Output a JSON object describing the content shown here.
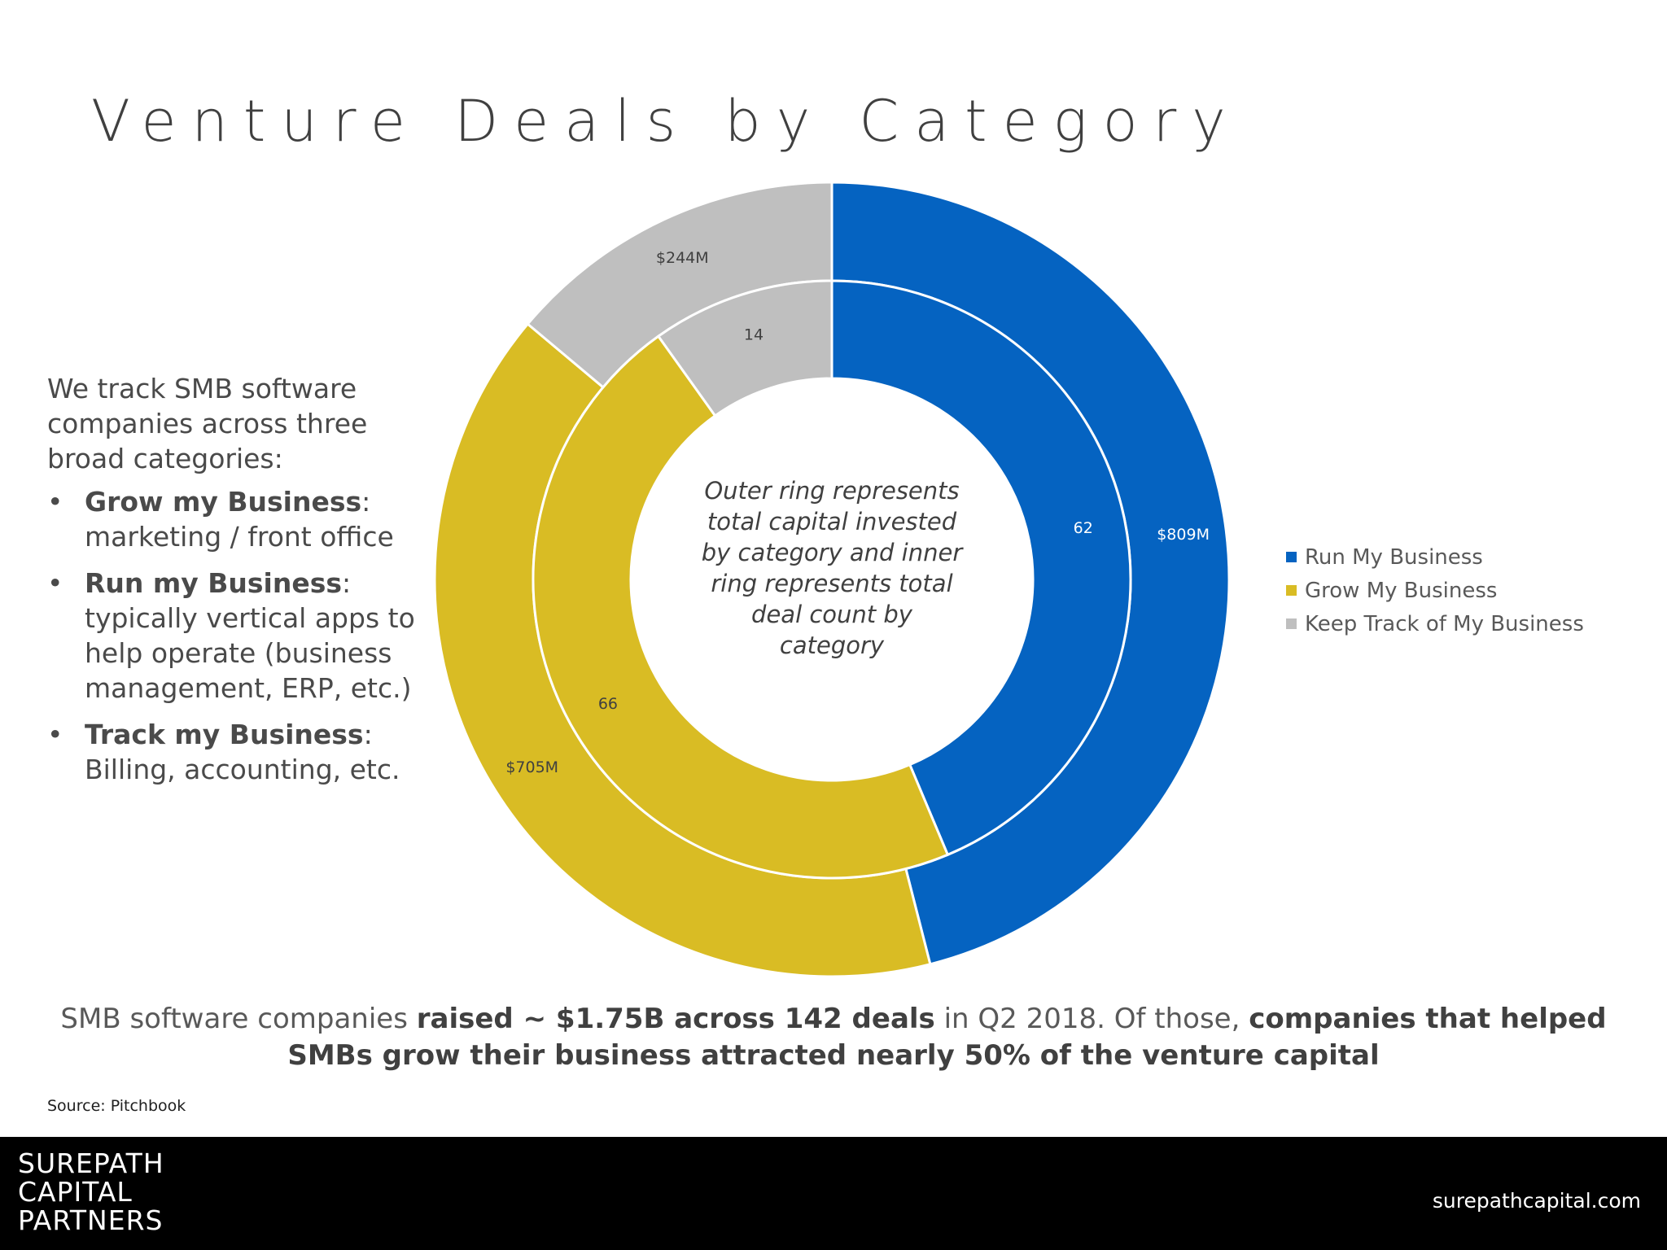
{
  "title": "Venture Deals by Category",
  "intro": "We track SMB software companies across three broad categories:",
  "bullets": [
    {
      "bold": "Grow my Business",
      "text": "marketing / front office"
    },
    {
      "bold": "Run my Business",
      "text": "typically vertical apps to help operate (business management, ERP, etc.)"
    },
    {
      "bold": "Track my Business",
      "text": "Billing, accounting, etc."
    }
  ],
  "bullet_symbol": "•",
  "center_note": [
    "Outer ring represents",
    "total capital invested",
    "by category and inner",
    "ring represents total",
    "deal count by",
    "category"
  ],
  "chart_data": {
    "type": "pie",
    "subtype": "nested-donut",
    "categories": [
      "Run My Business",
      "Grow My Business",
      "Keep Track of My Business"
    ],
    "colors": [
      "#0563C1",
      "#D9BC24",
      "#BFBFBF"
    ],
    "series": [
      {
        "ring": "outer",
        "values": [
          809,
          705,
          244
        ],
        "labels": [
          "$809M",
          "$705M",
          "$244M"
        ]
      },
      {
        "ring": "inner",
        "values": [
          62,
          66,
          14
        ],
        "labels": [
          "62",
          "66",
          "14"
        ]
      }
    ],
    "legend_position": "right"
  },
  "summary": {
    "p1": "SMB software companies ",
    "b1": "raised ~ $1.75B across 142 deals",
    "p2": " in Q2 2018. Of those, ",
    "b2": "companies that helped SMBs grow their business attracted nearly 50% of the venture capital"
  },
  "source": "Source: Pitchbook",
  "logo": [
    "SUREPATH",
    "CAPITAL",
    "PARTNERS"
  ],
  "website": "surepathcapital.com"
}
